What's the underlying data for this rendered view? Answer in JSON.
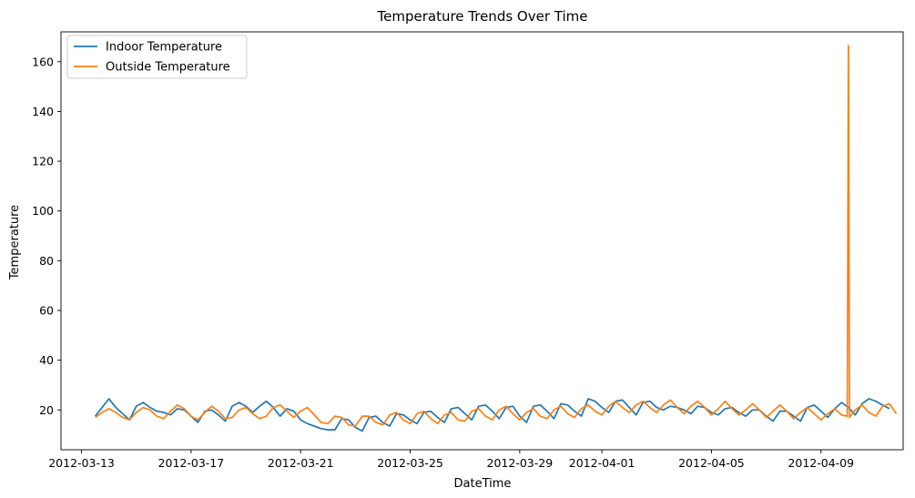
{
  "chart_data": {
    "type": "line",
    "title": "Temperature Trends Over Time",
    "xlabel": "DateTime",
    "ylabel": "Temperature",
    "xlim": [
      "2012-03-12T06:00",
      "2012-04-12T00:00"
    ],
    "ylim": [
      4,
      172
    ],
    "x_ticks": [
      "2012-03-13",
      "2012-03-17",
      "2012-03-21",
      "2012-03-25",
      "2012-03-29",
      "2012-04-01",
      "2012-04-05",
      "2012-04-09"
    ],
    "y_ticks": [
      20,
      40,
      60,
      80,
      100,
      120,
      140,
      160
    ],
    "grid": false,
    "legend": "top-left",
    "series": [
      {
        "name": "Indoor Temperature",
        "color": "#1f77b4",
        "points": [
          [
            "2012-03-13T12:00",
            17.5
          ],
          [
            "2012-03-13T18:00",
            21.0
          ],
          [
            "2012-03-14T00:00",
            24.5
          ],
          [
            "2012-03-14T06:00",
            21.0
          ],
          [
            "2012-03-14T12:00",
            18.5
          ],
          [
            "2012-03-14T18:00",
            16.0
          ],
          [
            "2012-03-15T00:00",
            21.5
          ],
          [
            "2012-03-15T06:00",
            23.0
          ],
          [
            "2012-03-15T12:00",
            21.0
          ],
          [
            "2012-03-15T18:00",
            19.5
          ],
          [
            "2012-03-16T00:00",
            19.0
          ],
          [
            "2012-03-16T06:00",
            18.0
          ],
          [
            "2012-03-16T12:00",
            20.5
          ],
          [
            "2012-03-16T18:00",
            20.0
          ],
          [
            "2012-03-17T00:00",
            17.5
          ],
          [
            "2012-03-17T06:00",
            15.0
          ],
          [
            "2012-03-17T12:00",
            19.5
          ],
          [
            "2012-03-17T18:00",
            20.0
          ],
          [
            "2012-03-18T00:00",
            18.0
          ],
          [
            "2012-03-18T06:00",
            15.5
          ],
          [
            "2012-03-18T12:00",
            21.5
          ],
          [
            "2012-03-18T18:00",
            23.0
          ],
          [
            "2012-03-19T00:00",
            21.5
          ],
          [
            "2012-03-19T06:00",
            19.0
          ],
          [
            "2012-03-19T12:00",
            21.5
          ],
          [
            "2012-03-19T18:00",
            23.5
          ],
          [
            "2012-03-20T00:00",
            21.0
          ],
          [
            "2012-03-20T06:00",
            17.5
          ],
          [
            "2012-03-20T12:00",
            20.5
          ],
          [
            "2012-03-20T18:00",
            19.5
          ],
          [
            "2012-03-21T00:00",
            16.0
          ],
          [
            "2012-03-21T06:00",
            14.5
          ],
          [
            "2012-03-21T12:00",
            13.5
          ],
          [
            "2012-03-21T18:00",
            12.5
          ],
          [
            "2012-03-22T00:00",
            12.0
          ],
          [
            "2012-03-22T06:00",
            12.0
          ],
          [
            "2012-03-22T12:00",
            16.5
          ],
          [
            "2012-03-22T18:00",
            16.0
          ],
          [
            "2012-03-23T00:00",
            13.0
          ],
          [
            "2012-03-23T06:00",
            11.5
          ],
          [
            "2012-03-23T12:00",
            17.0
          ],
          [
            "2012-03-23T18:00",
            17.5
          ],
          [
            "2012-03-24T00:00",
            15.0
          ],
          [
            "2012-03-24T06:00",
            13.5
          ],
          [
            "2012-03-24T12:00",
            18.5
          ],
          [
            "2012-03-24T18:00",
            18.0
          ],
          [
            "2012-03-25T00:00",
            16.0
          ],
          [
            "2012-03-25T06:00",
            14.5
          ],
          [
            "2012-03-25T12:00",
            19.0
          ],
          [
            "2012-03-25T18:00",
            19.5
          ],
          [
            "2012-03-26T00:00",
            17.0
          ],
          [
            "2012-03-26T06:00",
            15.0
          ],
          [
            "2012-03-26T12:00",
            20.5
          ],
          [
            "2012-03-26T18:00",
            21.0
          ],
          [
            "2012-03-27T00:00",
            18.5
          ],
          [
            "2012-03-27T06:00",
            16.0
          ],
          [
            "2012-03-27T12:00",
            21.5
          ],
          [
            "2012-03-27T18:00",
            22.0
          ],
          [
            "2012-03-28T00:00",
            19.5
          ],
          [
            "2012-03-28T06:00",
            16.5
          ],
          [
            "2012-03-28T12:00",
            21.0
          ],
          [
            "2012-03-28T18:00",
            21.5
          ],
          [
            "2012-03-29T00:00",
            17.5
          ],
          [
            "2012-03-29T06:00",
            15.0
          ],
          [
            "2012-03-29T12:00",
            21.5
          ],
          [
            "2012-03-29T18:00",
            22.0
          ],
          [
            "2012-03-30T00:00",
            19.5
          ],
          [
            "2012-03-30T06:00",
            16.5
          ],
          [
            "2012-03-30T12:00",
            22.5
          ],
          [
            "2012-03-30T18:00",
            22.0
          ],
          [
            "2012-03-31T00:00",
            19.5
          ],
          [
            "2012-03-31T06:00",
            17.5
          ],
          [
            "2012-03-31T12:00",
            24.5
          ],
          [
            "2012-03-31T18:00",
            23.5
          ],
          [
            "2012-04-01T00:00",
            21.0
          ],
          [
            "2012-04-01T06:00",
            19.0
          ],
          [
            "2012-04-01T12:00",
            23.5
          ],
          [
            "2012-04-01T18:00",
            24.0
          ],
          [
            "2012-04-02T00:00",
            21.0
          ],
          [
            "2012-04-02T06:00",
            18.0
          ],
          [
            "2012-04-02T12:00",
            23.0
          ],
          [
            "2012-04-02T18:00",
            23.5
          ],
          [
            "2012-04-03T00:00",
            21.0
          ],
          [
            "2012-04-03T06:00",
            20.0
          ],
          [
            "2012-04-03T12:00",
            21.5
          ],
          [
            "2012-04-03T18:00",
            21.0
          ],
          [
            "2012-04-04T00:00",
            20.0
          ],
          [
            "2012-04-04T06:00",
            18.5
          ],
          [
            "2012-04-04T12:00",
            21.5
          ],
          [
            "2012-04-04T18:00",
            21.0
          ],
          [
            "2012-04-05T00:00",
            19.0
          ],
          [
            "2012-04-05T06:00",
            18.0
          ],
          [
            "2012-04-05T12:00",
            20.5
          ],
          [
            "2012-04-05T18:00",
            21.0
          ],
          [
            "2012-04-06T00:00",
            19.0
          ],
          [
            "2012-04-06T06:00",
            17.5
          ],
          [
            "2012-04-06T12:00",
            20.0
          ],
          [
            "2012-04-06T18:00",
            20.0
          ],
          [
            "2012-04-07T00:00",
            17.5
          ],
          [
            "2012-04-07T06:00",
            15.5
          ],
          [
            "2012-04-07T12:00",
            19.5
          ],
          [
            "2012-04-07T18:00",
            19.5
          ],
          [
            "2012-04-08T00:00",
            17.5
          ],
          [
            "2012-04-08T06:00",
            15.5
          ],
          [
            "2012-04-08T12:00",
            21.0
          ],
          [
            "2012-04-08T18:00",
            22.0
          ],
          [
            "2012-04-09T00:00",
            19.5
          ],
          [
            "2012-04-09T06:00",
            17.0
          ],
          [
            "2012-04-09T12:00",
            20.5
          ],
          [
            "2012-04-09T18:00",
            23.0
          ],
          [
            "2012-04-10T00:00",
            21.0
          ],
          [
            "2012-04-10T06:00",
            18.0
          ],
          [
            "2012-04-10T12:00",
            22.5
          ],
          [
            "2012-04-10T18:00",
            24.5
          ],
          [
            "2012-04-11T00:00",
            23.5
          ],
          [
            "2012-04-11T06:00",
            22.0
          ],
          [
            "2012-04-11T12:00",
            20.5
          ]
        ]
      },
      {
        "name": "Outside Temperature",
        "color": "#ff7f0e",
        "points": [
          [
            "2012-03-13T12:00",
            17.0
          ],
          [
            "2012-03-13T18:00",
            19.0
          ],
          [
            "2012-03-14T00:00",
            20.5
          ],
          [
            "2012-03-14T06:00",
            19.0
          ],
          [
            "2012-03-14T12:00",
            17.0
          ],
          [
            "2012-03-14T18:00",
            16.0
          ],
          [
            "2012-03-15T00:00",
            19.0
          ],
          [
            "2012-03-15T06:00",
            21.0
          ],
          [
            "2012-03-15T12:00",
            20.0
          ],
          [
            "2012-03-15T18:00",
            17.5
          ],
          [
            "2012-03-16T00:00",
            16.5
          ],
          [
            "2012-03-16T06:00",
            19.5
          ],
          [
            "2012-03-16T12:00",
            22.0
          ],
          [
            "2012-03-16T18:00",
            20.5
          ],
          [
            "2012-03-17T00:00",
            17.5
          ],
          [
            "2012-03-17T06:00",
            16.0
          ],
          [
            "2012-03-17T12:00",
            19.0
          ],
          [
            "2012-03-17T18:00",
            21.5
          ],
          [
            "2012-03-18T00:00",
            19.5
          ],
          [
            "2012-03-18T06:00",
            16.5
          ],
          [
            "2012-03-18T12:00",
            17.0
          ],
          [
            "2012-03-18T18:00",
            20.0
          ],
          [
            "2012-03-19T00:00",
            21.0
          ],
          [
            "2012-03-19T06:00",
            18.5
          ],
          [
            "2012-03-19T12:00",
            16.5
          ],
          [
            "2012-03-19T18:00",
            17.5
          ],
          [
            "2012-03-20T00:00",
            21.0
          ],
          [
            "2012-03-20T06:00",
            22.0
          ],
          [
            "2012-03-20T12:00",
            19.5
          ],
          [
            "2012-03-20T18:00",
            17.0
          ],
          [
            "2012-03-21T00:00",
            19.5
          ],
          [
            "2012-03-21T06:00",
            21.0
          ],
          [
            "2012-03-21T12:00",
            18.0
          ],
          [
            "2012-03-21T18:00",
            15.0
          ],
          [
            "2012-03-22T00:00",
            14.5
          ],
          [
            "2012-03-22T06:00",
            17.5
          ],
          [
            "2012-03-22T12:00",
            17.0
          ],
          [
            "2012-03-22T18:00",
            14.0
          ],
          [
            "2012-03-23T00:00",
            13.5
          ],
          [
            "2012-03-23T06:00",
            17.5
          ],
          [
            "2012-03-23T12:00",
            17.5
          ],
          [
            "2012-03-23T18:00",
            15.0
          ],
          [
            "2012-03-24T00:00",
            14.0
          ],
          [
            "2012-03-24T06:00",
            18.0
          ],
          [
            "2012-03-24T12:00",
            19.0
          ],
          [
            "2012-03-24T18:00",
            16.0
          ],
          [
            "2012-03-25T00:00",
            14.5
          ],
          [
            "2012-03-25T06:00",
            18.5
          ],
          [
            "2012-03-25T12:00",
            19.5
          ],
          [
            "2012-03-25T18:00",
            16.5
          ],
          [
            "2012-03-26T00:00",
            14.5
          ],
          [
            "2012-03-26T06:00",
            18.0
          ],
          [
            "2012-03-26T12:00",
            19.0
          ],
          [
            "2012-03-26T18:00",
            16.0
          ],
          [
            "2012-03-27T00:00",
            15.5
          ],
          [
            "2012-03-27T06:00",
            19.5
          ],
          [
            "2012-03-27T12:00",
            20.5
          ],
          [
            "2012-03-27T18:00",
            17.5
          ],
          [
            "2012-03-28T00:00",
            16.0
          ],
          [
            "2012-03-28T06:00",
            20.0
          ],
          [
            "2012-03-28T12:00",
            21.5
          ],
          [
            "2012-03-28T18:00",
            18.5
          ],
          [
            "2012-03-29T00:00",
            16.0
          ],
          [
            "2012-03-29T06:00",
            19.0
          ],
          [
            "2012-03-29T12:00",
            20.5
          ],
          [
            "2012-03-29T18:00",
            17.5
          ],
          [
            "2012-03-30T00:00",
            16.5
          ],
          [
            "2012-03-30T06:00",
            20.0
          ],
          [
            "2012-03-30T12:00",
            21.5
          ],
          [
            "2012-03-30T18:00",
            18.5
          ],
          [
            "2012-03-31T00:00",
            17.0
          ],
          [
            "2012-03-31T06:00",
            20.5
          ],
          [
            "2012-03-31T12:00",
            22.0
          ],
          [
            "2012-03-31T18:00",
            19.5
          ],
          [
            "2012-04-01T00:00",
            18.0
          ],
          [
            "2012-04-01T06:00",
            21.5
          ],
          [
            "2012-04-01T12:00",
            23.5
          ],
          [
            "2012-04-01T18:00",
            21.0
          ],
          [
            "2012-04-02T00:00",
            19.0
          ],
          [
            "2012-04-02T06:00",
            22.0
          ],
          [
            "2012-04-02T12:00",
            23.5
          ],
          [
            "2012-04-02T18:00",
            21.0
          ],
          [
            "2012-04-03T00:00",
            19.0
          ],
          [
            "2012-04-03T06:00",
            22.0
          ],
          [
            "2012-04-03T12:00",
            24.0
          ],
          [
            "2012-04-03T18:00",
            21.0
          ],
          [
            "2012-04-04T00:00",
            18.5
          ],
          [
            "2012-04-04T06:00",
            21.5
          ],
          [
            "2012-04-04T12:00",
            23.5
          ],
          [
            "2012-04-04T18:00",
            21.0
          ],
          [
            "2012-04-05T00:00",
            18.0
          ],
          [
            "2012-04-05T06:00",
            20.5
          ],
          [
            "2012-04-05T12:00",
            23.5
          ],
          [
            "2012-04-05T18:00",
            20.5
          ],
          [
            "2012-04-06T00:00",
            18.0
          ],
          [
            "2012-04-06T06:00",
            20.0
          ],
          [
            "2012-04-06T12:00",
            22.5
          ],
          [
            "2012-04-06T18:00",
            20.0
          ],
          [
            "2012-04-07T00:00",
            17.0
          ],
          [
            "2012-04-07T06:00",
            19.5
          ],
          [
            "2012-04-07T12:00",
            22.0
          ],
          [
            "2012-04-07T18:00",
            19.5
          ],
          [
            "2012-04-08T00:00",
            16.5
          ],
          [
            "2012-04-08T06:00",
            19.0
          ],
          [
            "2012-04-08T12:00",
            21.0
          ],
          [
            "2012-04-08T18:00",
            18.5
          ],
          [
            "2012-04-09T00:00",
            16.0
          ],
          [
            "2012-04-09T06:00",
            18.5
          ],
          [
            "2012-04-09T12:00",
            20.5
          ],
          [
            "2012-04-09T18:00",
            18.0
          ],
          [
            "2012-04-09T23:00",
            17.5
          ],
          [
            "2012-04-10T00:00",
            166.5
          ],
          [
            "2012-04-10T01:00",
            17.0
          ],
          [
            "2012-04-10T06:00",
            20.0
          ],
          [
            "2012-04-10T12:00",
            22.0
          ],
          [
            "2012-04-10T18:00",
            19.0
          ],
          [
            "2012-04-11T00:00",
            17.5
          ],
          [
            "2012-04-11T06:00",
            21.5
          ],
          [
            "2012-04-11T12:00",
            22.5
          ],
          [
            "2012-04-11T18:00",
            18.5
          ]
        ]
      }
    ]
  }
}
